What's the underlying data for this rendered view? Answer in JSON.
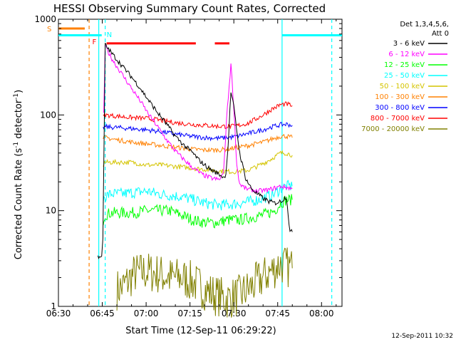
{
  "chart_data": {
    "type": "line",
    "title": "HESSI Observing Summary Count Rates, Corrected",
    "xlabel": "Start Time (12-Sep-11 06:29:22)",
    "ylabel": "Corrected Count Rate (s",
    "ylabel_sup": "-1",
    "ylabel_mid": " detector",
    "ylabel_end": ")",
    "timestamp": "12-Sep-2011 10:32",
    "x_unit": "minutes after 06:30",
    "xlim": [
      0,
      97
    ],
    "ylim": [
      1,
      1000
    ],
    "yscale": "log",
    "grid": false,
    "x_ticks": [
      {
        "x": 0,
        "label": "06:30"
      },
      {
        "x": 15,
        "label": "06:45"
      },
      {
        "x": 30,
        "label": "07:00"
      },
      {
        "x": 45,
        "label": "07:15"
      },
      {
        "x": 60,
        "label": "07:30"
      },
      {
        "x": 75,
        "label": "07:45"
      },
      {
        "x": 90,
        "label": "08:00"
      }
    ],
    "y_ticks": [
      {
        "y": 1,
        "label": "1"
      },
      {
        "y": 10,
        "label": "10"
      },
      {
        "y": 100,
        "label": "100"
      },
      {
        "y": 1000,
        "label": "1000"
      }
    ],
    "legend": {
      "placement": "right",
      "header": [
        "Det 1,3,4,5,6,",
        "Att 0"
      ]
    },
    "series": [
      {
        "name": "3 - 6 keV",
        "color": "#000000",
        "x": [
          13.5,
          14.3,
          14.8,
          15.2,
          16,
          18,
          20,
          22,
          25,
          28,
          31,
          34,
          37,
          40,
          43,
          46,
          48,
          50,
          52,
          54,
          56,
          56.7,
          57.3,
          58,
          59,
          60,
          62,
          64,
          66,
          68,
          70,
          72,
          74,
          76,
          78,
          79.2,
          80
        ],
        "y": [
          3.3,
          3.4,
          3.2,
          5,
          540,
          450,
          380,
          320,
          250,
          190,
          140,
          105,
          80,
          60,
          48,
          40,
          34,
          30,
          27,
          25,
          23,
          22,
          25,
          45,
          175,
          120,
          40,
          22,
          17,
          15,
          13.5,
          12.5,
          12,
          12.5,
          14,
          6,
          6
        ]
      },
      {
        "name": "6 - 12 keV",
        "color": "#ff00ff",
        "x": [
          15.5,
          16,
          18,
          20,
          22,
          25,
          28,
          31,
          34,
          37,
          40,
          43,
          46,
          49,
          52,
          55,
          56.5,
          57.5,
          59,
          60,
          61,
          62,
          64,
          66,
          68,
          72,
          76,
          80
        ],
        "y": [
          100,
          520,
          400,
          320,
          260,
          190,
          140,
          100,
          75,
          55,
          42,
          34,
          28,
          24,
          22,
          21,
          25,
          90,
          340,
          120,
          30,
          19,
          17,
          16.5,
          16,
          16.5,
          18,
          17
        ]
      },
      {
        "name": "12 - 25 keV",
        "color": "#00ff00",
        "x": [
          15.3,
          15.8,
          18,
          22,
          26,
          30,
          34,
          38,
          42,
          46,
          50,
          54,
          58,
          62,
          66,
          70,
          74,
          76,
          78,
          80
        ],
        "y": [
          8,
          9,
          9.5,
          9.5,
          9.5,
          10,
          10,
          10,
          9,
          8,
          7.5,
          7.5,
          8,
          8,
          8.5,
          9,
          10,
          12,
          13,
          13
        ]
      },
      {
        "name": "25 - 50 keV",
        "color": "#00ffff",
        "x": [
          15.3,
          15.8,
          18,
          22,
          26,
          30,
          34,
          38,
          42,
          46,
          50,
          54,
          58,
          62,
          66,
          70,
          74,
          76,
          78,
          80
        ],
        "y": [
          13,
          14,
          15,
          15,
          15.5,
          16,
          15,
          14.5,
          14,
          13,
          12,
          11.5,
          11.5,
          12,
          12.5,
          13.5,
          15,
          17,
          18,
          18
        ]
      },
      {
        "name": "50 - 100 keV",
        "color": "#d4c400",
        "x": [
          15.3,
          15.8,
          20,
          25,
          30,
          35,
          40,
          45,
          50,
          55,
          60,
          65,
          70,
          73,
          76,
          78,
          80
        ],
        "y": [
          30,
          32,
          32,
          32,
          30,
          30,
          29,
          28,
          27,
          26,
          25.5,
          26.5,
          31,
          35,
          40,
          40,
          38
        ]
      },
      {
        "name": "100 - 300 keV",
        "color": "#ff8000",
        "x": [
          15.3,
          15.8,
          20,
          25,
          30,
          35,
          40,
          45,
          50,
          55,
          60,
          65,
          70,
          73,
          76,
          78,
          80
        ],
        "y": [
          55,
          58,
          55,
          52,
          50,
          48,
          46,
          44,
          43,
          43,
          45,
          48,
          52,
          56,
          60,
          60,
          58
        ]
      },
      {
        "name": "300 - 800 keV",
        "color": "#0000ff",
        "x": [
          15.3,
          15.8,
          20,
          25,
          30,
          35,
          40,
          45,
          50,
          55,
          60,
          65,
          70,
          73,
          76,
          78,
          80
        ],
        "y": [
          72,
          75,
          74,
          72,
          70,
          67,
          63,
          60,
          58,
          57,
          59,
          64,
          70,
          75,
          79,
          80,
          78
        ]
      },
      {
        "name": "800 - 7000 keV",
        "color": "#ff0000",
        "x": [
          15.3,
          15.8,
          20,
          25,
          30,
          35,
          40,
          45,
          50,
          55,
          60,
          65,
          70,
          73,
          76,
          78,
          80
        ],
        "y": [
          95,
          100,
          97,
          94,
          92,
          88,
          83,
          80,
          78,
          76,
          76,
          82,
          100,
          115,
          128,
          130,
          125
        ]
      },
      {
        "name": "7000 - 20000 keV",
        "color": "#808000",
        "x": [
          20,
          22,
          26,
          30,
          34,
          38,
          42,
          46,
          50,
          54,
          58,
          62,
          66,
          70,
          74,
          76,
          78,
          80
        ],
        "y": [
          1.5,
          1.6,
          2.2,
          2.3,
          2.2,
          2.0,
          2.0,
          1.8,
          1.5,
          1.3,
          1.2,
          1.3,
          1.6,
          2.0,
          2.5,
          2.8,
          2.6,
          2.5
        ]
      }
    ],
    "markers": [
      {
        "label": "S",
        "color": "#ff8000",
        "x": [
          0,
          9
        ],
        "y": 800
      },
      {
        "label": "N",
        "color": "#00ffff",
        "x": [
          15.5,
          15.5
        ],
        "y": 700
      },
      {
        "label": "F",
        "color": "#ff0000",
        "x": [
          15,
          15
        ],
        "y": 590
      }
    ],
    "state_bars": [
      {
        "color": "#ff8000",
        "x": [
          0,
          9
        ],
        "y": 800
      },
      {
        "color": "#00ffff",
        "x": [
          0,
          14.8
        ],
        "y": 680
      },
      {
        "color": "#00ffff",
        "x": [
          76.5,
          97
        ],
        "y": 680
      },
      {
        "color": "#ff0000",
        "x": [
          16.5,
          47
        ],
        "y": 560
      },
      {
        "color": "#ff0000",
        "x": [
          53.5,
          58.5
        ],
        "y": 560
      }
    ],
    "vertical_markers": [
      {
        "color": "#ff8000",
        "x": 10.5,
        "dashed": true
      },
      {
        "color": "#00ffff",
        "x": 16.0,
        "dashed": true
      },
      {
        "color": "#00ffff",
        "x": 93.5,
        "dashed": true
      },
      {
        "color": "#00ffff",
        "x": 13.8,
        "dashed": false
      },
      {
        "color": "#00ffff",
        "x": 76.5,
        "dashed": false
      }
    ]
  }
}
